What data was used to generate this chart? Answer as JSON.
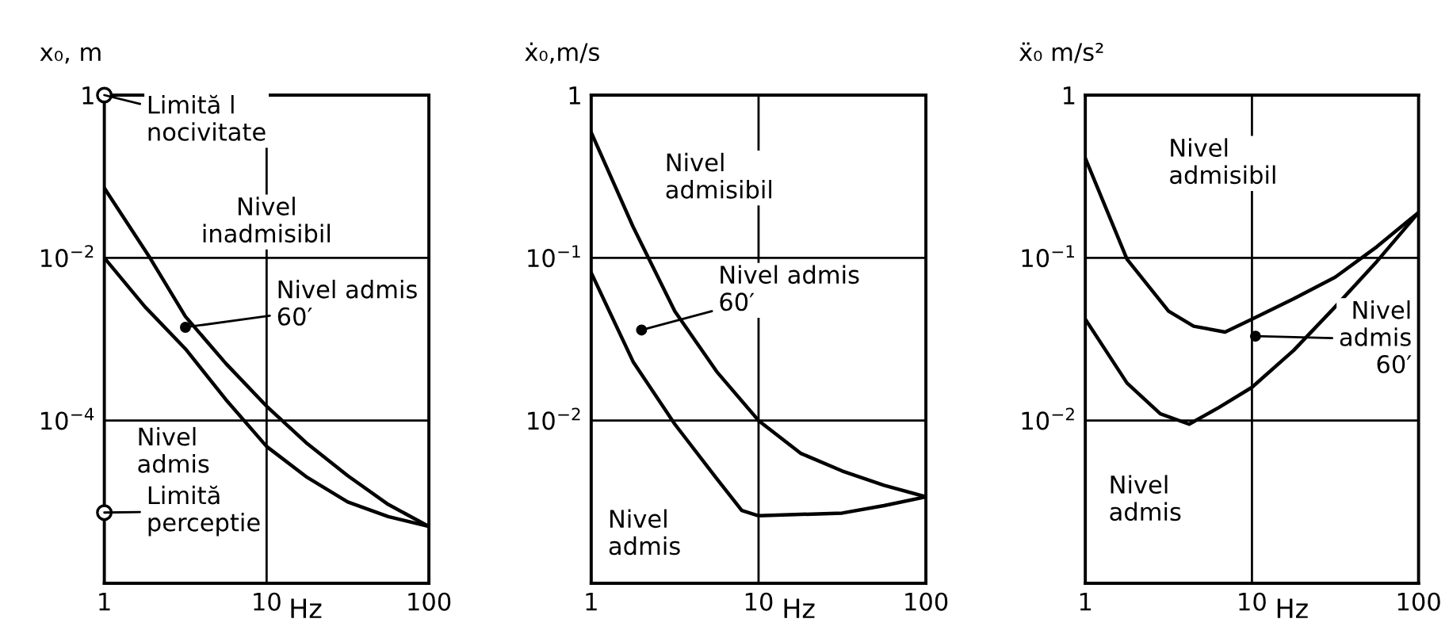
{
  "chart_data": [
    {
      "type": "line",
      "ylabel": "x₀, m",
      "xlabel": "Hz",
      "log": "xy",
      "xlim": [
        1,
        100
      ],
      "ylim": [
        1e-06,
        1
      ],
      "xticks": [
        1,
        10,
        100
      ],
      "yticks": [
        {
          "value": 0.0001,
          "label": "10$^{−4}$"
        },
        {
          "value": 0.01,
          "label": "10$^{−2}$"
        },
        1
      ],
      "grid": true,
      "marker": "none",
      "line_style": "solid",
      "series": [
        {
          "color": "#000000",
          "x": [
            1,
            1.91,
            3.16,
            5.62,
            10,
            17.8,
            31.6,
            56.2,
            100
          ],
          "values": [
            0.072,
            0.01,
            0.0019,
            0.0005,
            0.00015,
            5.2e-05,
            2.1e-05,
            9.3e-06,
            5e-06
          ]
        },
        {
          "color": "#000000",
          "x": [
            1,
            1.78,
            3.16,
            5.62,
            10,
            17.8,
            31.6,
            56.2,
            100
          ],
          "values": [
            0.01,
            0.0025,
            0.00076,
            0.00018,
            4.8e-05,
            2e-05,
            1e-05,
            6.6e-06,
            5e-06
          ]
        },
        {
          "type": "scatter",
          "color": "#000000",
          "marker": "circle",
          "x": [
            1,
            1
          ],
          "values": [
            1,
            7.4e-06
          ]
        }
      ],
      "annotations": [
        {
          "text": "Limită l\nnocivitate",
          "x": 1,
          "y": 1
        },
        "Nivel\ninadmisibil",
        {
          "text": "Nivel admis\n60′",
          "x": 3.16,
          "y": 0.0014
        },
        "Nivel\nadmis",
        {
          "text": "Limită\nperceptie",
          "x": 1,
          "y": 7.4e-06
        }
      ]
    },
    {
      "type": "line",
      "ylabel": "ẋ₀,m/s",
      "xlabel": "Hz",
      "log": "xy",
      "xlim": [
        1,
        100
      ],
      "ylim": [
        0.001,
        1
      ],
      "xticks": [
        1,
        10,
        100
      ],
      "yticks": [
        {
          "value": 0.01,
          "label": "10$^{−2}$"
        },
        {
          "value": 0.1,
          "label": "10$^{−1}$"
        },
        1
      ],
      "grid": true,
      "marker": "none",
      "line_style": "solid",
      "series": [
        {
          "color": "#000000",
          "x": [
            1,
            1.78,
            3.16,
            5.62,
            10,
            17.8,
            31.6,
            56.2,
            100
          ],
          "values": [
            0.59,
            0.155,
            0.047,
            0.02,
            0.01,
            0.0063,
            0.0049,
            0.004,
            0.0034
          ]
        },
        {
          "color": "#000000",
          "x": [
            1,
            1.78,
            3.16,
            5.62,
            7.94,
            10,
            31.6,
            56.2,
            100
          ],
          "values": [
            0.081,
            0.023,
            0.0095,
            0.0044,
            0.0028,
            0.0026,
            0.0027,
            0.003,
            0.0034
          ]
        }
      ],
      "annotations": [
        "Nivel\nadmisibil",
        {
          "text": "Nivel admis\n60′",
          "x": 2,
          "y": 0.036
        },
        "Nivel\nadmis"
      ]
    },
    {
      "type": "line",
      "ylabel": "ẍ₀ m/s²",
      "xlabel": "Hz",
      "log": "xy",
      "xlim": [
        1,
        100
      ],
      "ylim": [
        0.001,
        1
      ],
      "xticks": [
        1,
        10,
        100
      ],
      "yticks": [
        {
          "value": 0.01,
          "label": "10$^{−2}$"
        },
        {
          "value": 0.1,
          "label": "10$^{−1}$"
        },
        1
      ],
      "grid": true,
      "marker": "none",
      "line_style": "solid",
      "series": [
        {
          "color": "#000000",
          "x": [
            1,
            1.78,
            3.16,
            4.47,
            6.9,
            10,
            17.8,
            31.6,
            56.2,
            100
          ],
          "values": [
            0.41,
            0.098,
            0.047,
            0.038,
            0.035,
            0.042,
            0.056,
            0.076,
            0.117,
            0.19
          ]
        },
        {
          "color": "#000000",
          "x": [
            1,
            1.78,
            2.82,
            4.2,
            6.31,
            10,
            17.8,
            31.6,
            56.2,
            100
          ],
          "values": [
            0.042,
            0.017,
            0.011,
            0.0095,
            0.012,
            0.016,
            0.027,
            0.05,
            0.095,
            0.19
          ]
        }
      ],
      "annotations": [
        "Nivel\nadmisibil",
        {
          "text": "Nivel\nadmis\n60′",
          "x": 10.5,
          "y": 0.033
        },
        "Nivel\nadmis"
      ]
    }
  ]
}
